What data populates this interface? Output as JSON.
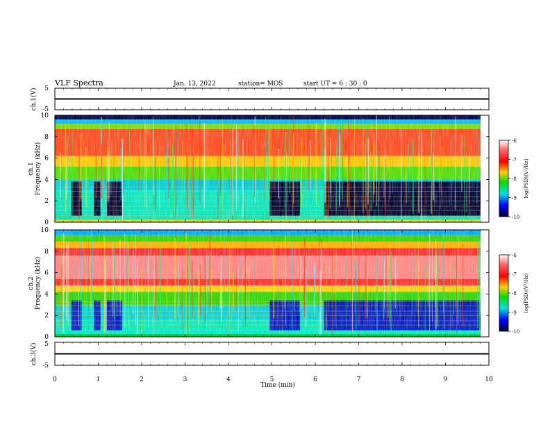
{
  "header": {
    "title": "VLF Spectra",
    "date": "Jan. 13, 2022",
    "station": "station= MOS",
    "start": "start  UT =   6 : 30 : 0"
  },
  "chart_data": [
    {
      "type": "line",
      "ylabel": "ch.1(V)",
      "ylim": [
        -5,
        5
      ],
      "yticks": [
        "5",
        "-5"
      ],
      "series": [
        {
          "values": [
            0
          ]
        }
      ]
    },
    {
      "type": "heatmap",
      "ylabel": "ch.1\nFrequency (kHz)",
      "ylim": [
        0,
        10
      ],
      "yticks": [
        "0",
        "2",
        "4",
        "6",
        "8",
        "10"
      ],
      "colorbar": {
        "label": "log(PSD)(V²/Hz)",
        "range": [
          -10,
          -6
        ],
        "ticks": [
          "-6",
          "-7",
          "-8",
          "-9",
          "-10"
        ]
      }
    },
    {
      "type": "heatmap",
      "ylabel": "ch.2\nFrequency (kHz)",
      "ylim": [
        0,
        10
      ],
      "yticks": [
        "0",
        "2",
        "4",
        "6",
        "8",
        "10"
      ],
      "colorbar": {
        "label": "log(PSD)(V²/Hz)",
        "range": [
          -10,
          -6
        ],
        "ticks": [
          "-6",
          "-7",
          "-8",
          "-9",
          "-10"
        ]
      }
    },
    {
      "type": "line",
      "ylabel": "ch.3(V)",
      "ylim": [
        -5,
        5
      ],
      "yticks": [
        "5",
        "-5"
      ],
      "xlabel": "Time  (min)",
      "xlim": [
        0,
        10
      ],
      "xticks": [
        "0",
        "1",
        "2",
        "3",
        "4",
        "5",
        "6",
        "7",
        "8",
        "9",
        "10"
      ],
      "series": [
        {
          "values": [
            0
          ]
        }
      ]
    }
  ]
}
